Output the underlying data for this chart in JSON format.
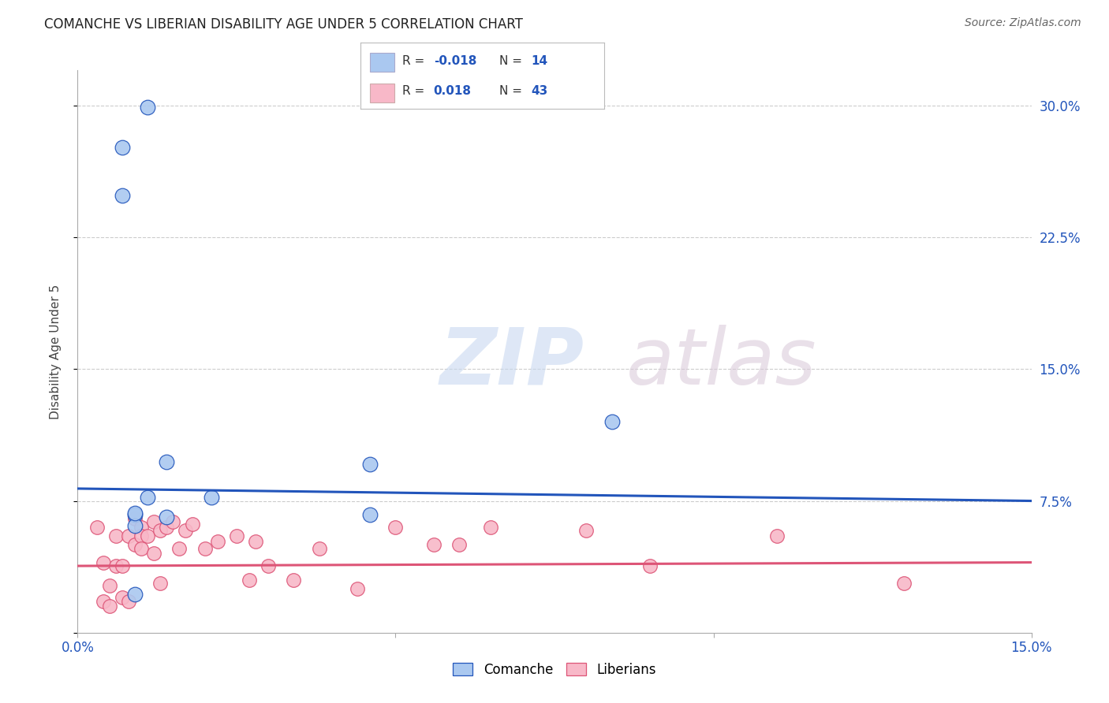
{
  "title": "COMANCHE VS LIBERIAN DISABILITY AGE UNDER 5 CORRELATION CHART",
  "source": "Source: ZipAtlas.com",
  "ylabel": "Disability Age Under 5",
  "xlim": [
    0.0,
    0.15
  ],
  "ylim": [
    0.0,
    0.32
  ],
  "yticks": [
    0.0,
    0.075,
    0.15,
    0.225,
    0.3
  ],
  "ytick_labels": [
    "",
    "7.5%",
    "15.0%",
    "22.5%",
    "30.0%"
  ],
  "xticks": [
    0.0,
    0.05,
    0.1,
    0.15
  ],
  "xtick_labels": [
    "0.0%",
    "",
    "",
    "15.0%"
  ],
  "watermark_zip": "ZIP",
  "watermark_atlas": "atlas",
  "legend_R_comanche": "-0.018",
  "legend_N_comanche": "14",
  "legend_R_liberian": "0.018",
  "legend_N_liberian": "43",
  "comanche_color": "#aac8f0",
  "liberian_color": "#f8b8c8",
  "comanche_line_color": "#2255bb",
  "liberian_line_color": "#dd5577",
  "background_color": "#ffffff",
  "grid_color": "#cccccc",
  "comanche_x": [
    0.007,
    0.011,
    0.007,
    0.009,
    0.009,
    0.011,
    0.014,
    0.014,
    0.021,
    0.046,
    0.046,
    0.084,
    0.009,
    0.009
  ],
  "comanche_y": [
    0.276,
    0.299,
    0.249,
    0.067,
    0.061,
    0.077,
    0.066,
    0.097,
    0.077,
    0.096,
    0.067,
    0.12,
    0.068,
    0.022
  ],
  "liberian_x": [
    0.003,
    0.004,
    0.004,
    0.005,
    0.005,
    0.006,
    0.006,
    0.007,
    0.007,
    0.008,
    0.008,
    0.009,
    0.009,
    0.01,
    0.01,
    0.01,
    0.011,
    0.012,
    0.012,
    0.013,
    0.013,
    0.014,
    0.015,
    0.016,
    0.017,
    0.018,
    0.02,
    0.022,
    0.025,
    0.027,
    0.028,
    0.03,
    0.034,
    0.038,
    0.044,
    0.05,
    0.056,
    0.06,
    0.065,
    0.08,
    0.09,
    0.11,
    0.13
  ],
  "liberian_y": [
    0.06,
    0.04,
    0.018,
    0.015,
    0.027,
    0.055,
    0.038,
    0.038,
    0.02,
    0.018,
    0.055,
    0.065,
    0.05,
    0.06,
    0.055,
    0.048,
    0.055,
    0.063,
    0.045,
    0.058,
    0.028,
    0.06,
    0.063,
    0.048,
    0.058,
    0.062,
    0.048,
    0.052,
    0.055,
    0.03,
    0.052,
    0.038,
    0.03,
    0.048,
    0.025,
    0.06,
    0.05,
    0.05,
    0.06,
    0.058,
    0.038,
    0.055,
    0.028
  ]
}
